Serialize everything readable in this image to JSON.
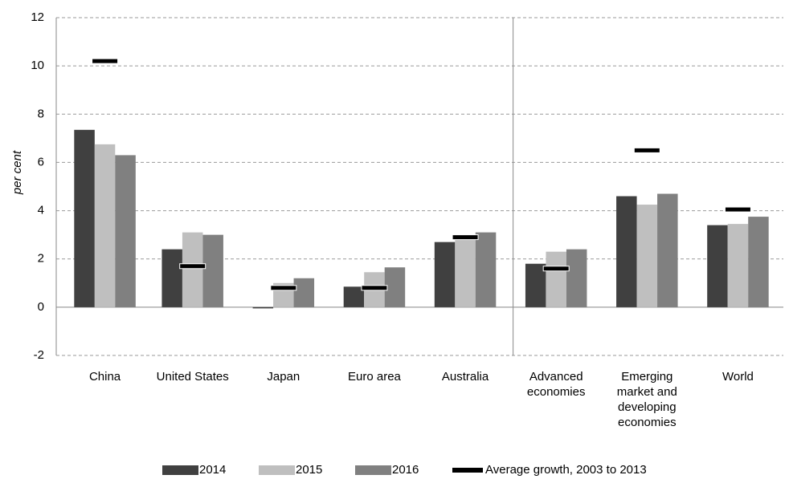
{
  "chart_data": {
    "type": "bar",
    "y_label": "per cent",
    "categories": [
      "China",
      "United States",
      "Japan",
      "Euro area",
      "Australia",
      "Advanced economies",
      "Emerging market and developing economies",
      "World"
    ],
    "series": [
      {
        "name": "2014",
        "color": "#404040",
        "values": [
          7.35,
          2.4,
          -0.05,
          0.85,
          2.7,
          1.8,
          4.6,
          3.4
        ]
      },
      {
        "name": "2015",
        "color": "#bfbfbf",
        "values": [
          6.75,
          3.1,
          1.0,
          1.45,
          2.8,
          2.3,
          4.25,
          3.45
        ]
      },
      {
        "name": "2016",
        "color": "#808080",
        "values": [
          6.3,
          3.0,
          1.2,
          1.65,
          3.1,
          2.4,
          4.7,
          3.75
        ]
      }
    ],
    "average": {
      "name": "Average growth, 2003 to 2013",
      "color": "#000000",
      "values": [
        10.2,
        1.7,
        0.8,
        0.8,
        2.9,
        1.6,
        6.5,
        4.05
      ]
    },
    "ylim": [
      -2,
      12
    ],
    "yticks": [
      -2,
      0,
      2,
      4,
      6,
      8,
      10,
      12
    ],
    "grid": true,
    "legend": "bottom"
  }
}
